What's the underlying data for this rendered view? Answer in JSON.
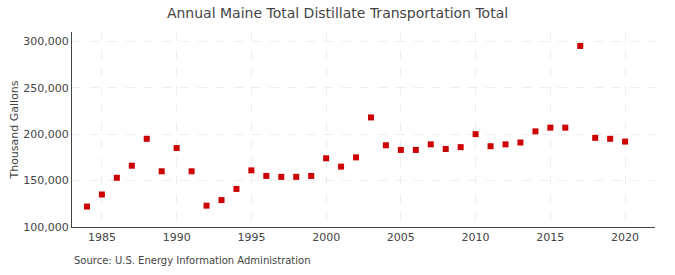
{
  "chart_data": {
    "type": "scatter",
    "title": "Annual Maine Total Distillate Transportation Total",
    "ylabel": "Thousand Gallons",
    "annotations": [
      "Source: U.S. Energy Information Administration"
    ],
    "x": [
      1984,
      1985,
      1986,
      1987,
      1988,
      1989,
      1990,
      1991,
      1992,
      1993,
      1994,
      1995,
      1996,
      1997,
      1998,
      1999,
      2000,
      2001,
      2002,
      2003,
      2004,
      2005,
      2006,
      2007,
      2008,
      2009,
      2010,
      2011,
      2012,
      2013,
      2014,
      2015,
      2016,
      2017,
      2018,
      2019,
      2020
    ],
    "values": [
      122000,
      135000,
      153000,
      166000,
      195000,
      160000,
      185000,
      160000,
      123000,
      129000,
      141000,
      161000,
      155000,
      154000,
      154000,
      155000,
      174000,
      165000,
      175000,
      218000,
      188000,
      183000,
      183000,
      189000,
      184000,
      186000,
      200000,
      187000,
      189000,
      191000,
      203000,
      207000,
      207000,
      295000,
      196000,
      195000,
      192000
    ],
    "color": "#cc0000",
    "marker": "square",
    "xlim": [
      1983,
      2022
    ],
    "ylim": [
      100000,
      310000
    ],
    "xticks": [
      1985,
      1990,
      1995,
      2000,
      2005,
      2010,
      2015,
      2020
    ],
    "yticks": [
      {
        "value": 100000,
        "label": "100,000"
      },
      {
        "value": 150000,
        "label": "150,000"
      },
      {
        "value": 200000,
        "label": "200,000"
      },
      {
        "value": 250000,
        "label": "250,000"
      },
      {
        "value": 300000,
        "label": "300,000"
      }
    ],
    "grid": true
  }
}
